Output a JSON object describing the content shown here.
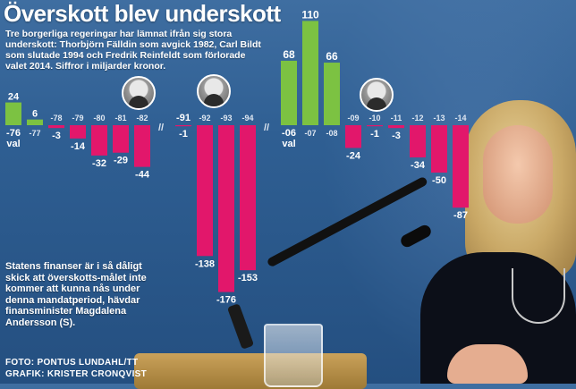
{
  "headline": "Överskott blev underskott",
  "lead": "Tre borgerliga regeringar har lämnat ifrån sig stora underskott: Thorbjörn Fälldin som avgick 1982, Carl Bildt som slutade 1994 och Fredrik Reinfeldt som förlorade valet 2014. Siffror i miljarder kronor.",
  "quote": "Statens finanser är i så dåligt skick att överskotts-målet inte kommer att kunna nås under denna mandatperiod, hävdar finansminister Magdalena Andersson (S).",
  "credits": {
    "photo": "FOTO: PONTUS LUNDAHL/TT",
    "graphic": "GRAFIK: KRISTER CRONQVIST"
  },
  "axis_break_symbol": "//",
  "colors": {
    "surplus": "#7cc242",
    "deficit": "#e2176b",
    "background": "#2f5f93",
    "text": "#ffffff"
  },
  "icons": [
    "portrait-falldin-icon",
    "portrait-bildt-icon",
    "portrait-reinfeldt-icon"
  ],
  "chart_data": {
    "type": "bar",
    "title": "Överskott blev underskott",
    "ylabel": "Siffror i miljarder kronor",
    "baseline": 0,
    "groups": [
      {
        "val_marker": "val",
        "categories": [
          "-76",
          "-77",
          "-78",
          "-79",
          "-80",
          "-81",
          "-82"
        ],
        "values": [
          24,
          6,
          -3,
          -14,
          -32,
          -29,
          -44
        ]
      },
      {
        "val_marker": "",
        "categories": [
          "-91",
          "-92",
          "-93",
          "-94"
        ],
        "values": [
          -1,
          -138,
          -176,
          -153
        ]
      },
      {
        "val_marker": "val",
        "categories": [
          "-06",
          "-07",
          "-08",
          "-09",
          "-10",
          "-11",
          "-12",
          "-13",
          "-14"
        ],
        "values": [
          68,
          110,
          66,
          -24,
          -1,
          -3,
          -34,
          -50,
          -87
        ]
      }
    ]
  }
}
